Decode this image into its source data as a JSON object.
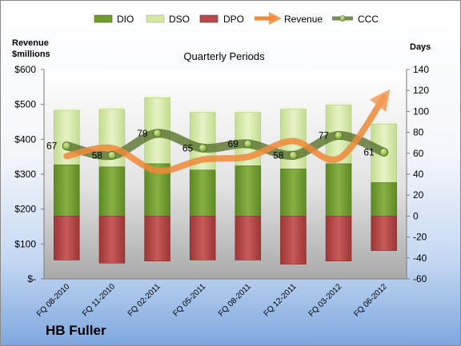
{
  "chart_data": {
    "type": "bar",
    "title": "Quarterly Periods",
    "company_label": "HB Fuller",
    "left_axis_title_line1": "Revenue",
    "left_axis_title_line2": "$millions",
    "right_axis_title": "Days",
    "left_axis": {
      "range": [
        0,
        600
      ],
      "ticks": [
        "$-",
        "$100",
        "$200",
        "$300",
        "$400",
        "$500",
        "$600"
      ]
    },
    "right_axis": {
      "range": [
        -60,
        140
      ],
      "ticks": [
        "-60",
        "-40",
        "-20",
        "0",
        "20",
        "40",
        "60",
        "80",
        "100",
        "120",
        "140"
      ]
    },
    "categories": [
      "FQ 08-2010",
      "FQ 11-2010",
      "FQ 02-2011",
      "FQ 05-2011",
      "FQ 08-2011",
      "FQ 12-2011",
      "FQ 03-2012",
      "FQ 06-2012"
    ],
    "legend_position": "top",
    "grid": false,
    "series": [
      {
        "name": "DIO",
        "kind": "stacked-bar",
        "axis": "days",
        "color": "#6f9a2e",
        "values": [
          49,
          47,
          50,
          44,
          48,
          45,
          50,
          32
        ]
      },
      {
        "name": "DSO",
        "kind": "stacked-bar",
        "axis": "days",
        "color": "#d4e9a6",
        "values": [
          52,
          55,
          63,
          55,
          51,
          57,
          56,
          56
        ]
      },
      {
        "name": "DPO",
        "kind": "stacked-bar-negative",
        "axis": "days",
        "color": "#b94a4a",
        "values": [
          -42,
          -45,
          -43,
          -42,
          -42,
          -46,
          -43,
          -33
        ]
      },
      {
        "name": "Revenue",
        "kind": "line",
        "axis": "revenue",
        "color": "#f08a3a",
        "values": [
          352,
          375,
          310,
          342,
          350,
          395,
          345,
          520
        ]
      },
      {
        "name": "CCC",
        "kind": "line",
        "axis": "days",
        "color": "#56702a",
        "values": [
          67,
          58,
          79,
          65,
          69,
          58,
          77,
          61
        ]
      }
    ],
    "ccc_labels": [
      "67",
      "58",
      "79",
      "65",
      "69",
      "58",
      "77",
      "61"
    ]
  }
}
